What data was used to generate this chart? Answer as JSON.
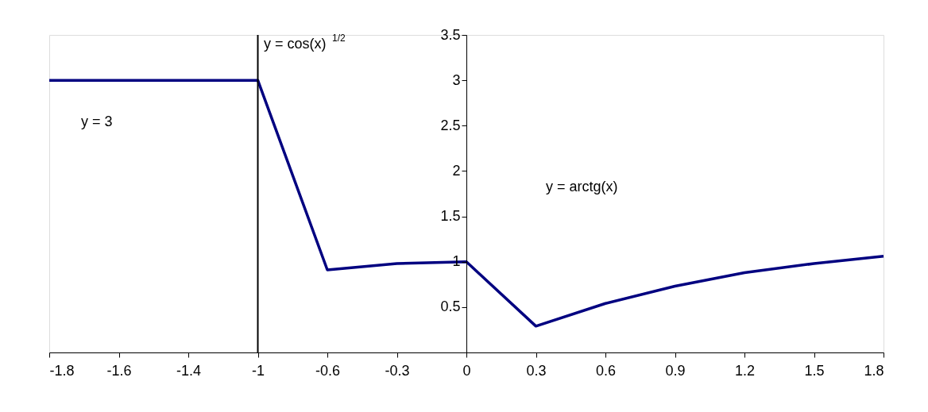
{
  "chart_data": {
    "type": "line",
    "categories": [
      "-1.8",
      "-1.6",
      "-1.4",
      "-1",
      "-0.6",
      "-0.3",
      "0",
      "0.3",
      "0.6",
      "0.9",
      "1.2",
      "1.5",
      "1.8"
    ],
    "series": [
      {
        "color": "#000080",
        "values": [
          3,
          3,
          3,
          3,
          0.91,
          0.98,
          1.0,
          0.29,
          0.54,
          0.73,
          0.88,
          0.98,
          1.06
        ]
      }
    ],
    "ylim": [
      0,
      3.5
    ],
    "yticks": [
      0.5,
      1,
      1.5,
      2,
      2.5,
      3,
      3.5
    ],
    "ref_lines": [
      {
        "axis": "x",
        "value": "-1",
        "color": "#000000"
      }
    ],
    "annotations": [
      "y = cos(x)$^{1/2}$",
      "y = 3",
      "y = arctg(x)"
    ],
    "grid": false,
    "marker": "none",
    "line_style": "solid"
  }
}
